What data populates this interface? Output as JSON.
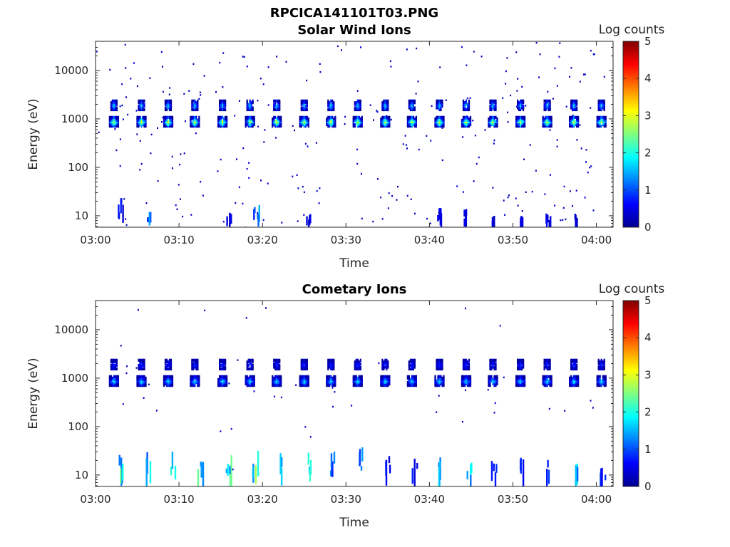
{
  "figure_title": "RPCICA141101T03.PNG",
  "colors": {
    "colormap": [
      "#00008f",
      "#0000ff",
      "#0080ff",
      "#00ffff",
      "#80ff80",
      "#ffff00",
      "#ff8000",
      "#ff0000",
      "#800000"
    ]
  },
  "chart_data": [
    {
      "type": "heatmap",
      "title": "Solar Wind Ions",
      "xlabel": "Time",
      "ylabel": "Energy (eV)",
      "yscale": "log",
      "ylim": [
        5.8,
        40000
      ],
      "xlim": [
        "03:00",
        "04:02"
      ],
      "x_ticks": [
        "03:00",
        "03:10",
        "03:20",
        "03:30",
        "03:40",
        "03:50",
        "04:00"
      ],
      "y_ticks": [
        10,
        100,
        1000,
        10000
      ],
      "y_tick_labels": [
        "10",
        "100",
        "1000",
        "10000"
      ],
      "colorbar": {
        "label": "Log counts",
        "range": [
          0,
          5
        ],
        "ticks": [
          "0",
          "1",
          "2",
          "3",
          "4",
          "5"
        ]
      },
      "grid": false,
      "sweep_times_min": [
        2.2,
        5.5,
        8.7,
        11.9,
        15.2,
        18.5,
        21.7,
        25.0,
        28.2,
        31.4,
        34.7,
        37.9,
        41.2,
        44.4,
        47.6,
        50.9,
        54.1,
        57.3,
        60.6
      ],
      "bands": [
        {
          "energy_center_eV": 870,
          "peak_log_counts": 3.0
        },
        {
          "energy_center_eV": 1900,
          "peak_log_counts": 1.8
        }
      ],
      "low_energy_streaks": [
        {
          "time_min": 3.0,
          "energy_range_eV": [
            6,
            30
          ],
          "log_counts": 0.7
        },
        {
          "time_min": 6.2,
          "energy_range_eV": [
            6,
            12
          ],
          "log_counts": 1.5
        },
        {
          "time_min": 16.0,
          "energy_range_eV": [
            6,
            12
          ],
          "log_counts": 0.6
        },
        {
          "time_min": 19.2,
          "energy_range_eV": [
            6,
            20
          ],
          "log_counts": 1.4
        },
        {
          "time_min": 25.3,
          "energy_range_eV": [
            6,
            12
          ],
          "log_counts": 0.6
        },
        {
          "time_min": 41.2,
          "energy_range_eV": [
            6,
            15
          ],
          "log_counts": 0.5
        },
        {
          "time_min": 44.4,
          "energy_range_eV": [
            6,
            15
          ],
          "log_counts": 0.5
        },
        {
          "time_min": 47.6,
          "energy_range_eV": [
            6,
            10
          ],
          "log_counts": 0.5
        },
        {
          "time_min": 50.9,
          "energy_range_eV": [
            6,
            12
          ],
          "log_counts": 0.6
        },
        {
          "time_min": 54.1,
          "energy_range_eV": [
            6,
            12
          ],
          "log_counts": 0.6
        },
        {
          "time_min": 57.3,
          "energy_range_eV": [
            6,
            14
          ],
          "log_counts": 0.6
        }
      ]
    },
    {
      "type": "heatmap",
      "title": "Cometary Ions",
      "xlabel": "Time",
      "ylabel": "Energy (eV)",
      "yscale": "log",
      "ylim": [
        5.8,
        40000
      ],
      "xlim": [
        "03:00",
        "04:02"
      ],
      "x_ticks": [
        "03:00",
        "03:10",
        "03:20",
        "03:30",
        "03:40",
        "03:50",
        "04:00"
      ],
      "y_ticks": [
        10,
        100,
        1000,
        10000
      ],
      "y_tick_labels": [
        "10",
        "100",
        "1000",
        "10000"
      ],
      "colorbar": {
        "label": "Log counts",
        "range": [
          0,
          5
        ],
        "ticks": [
          "0",
          "1",
          "2",
          "3",
          "4",
          "5"
        ]
      },
      "grid": false,
      "sweep_times_min": [
        2.2,
        5.5,
        8.7,
        11.9,
        15.2,
        18.5,
        21.7,
        25.0,
        28.2,
        31.4,
        34.7,
        37.9,
        41.2,
        44.4,
        47.6,
        50.9,
        54.1,
        57.3,
        60.6
      ],
      "bands": [
        {
          "energy_center_eV": 870,
          "peak_log_counts": 1.8
        },
        {
          "energy_center_eV": 1900,
          "peak_log_counts": 0.9
        }
      ],
      "low_energy_streaks": [
        {
          "time_min": 3.0,
          "energy_range_eV": [
            6,
            35
          ],
          "log_counts": 2.3
        },
        {
          "time_min": 6.2,
          "energy_range_eV": [
            6,
            35
          ],
          "log_counts": 2.0
        },
        {
          "time_min": 9.2,
          "energy_range_eV": [
            6,
            40
          ],
          "log_counts": 2.0
        },
        {
          "time_min": 12.5,
          "energy_range_eV": [
            6,
            35
          ],
          "log_counts": 2.2
        },
        {
          "time_min": 15.9,
          "energy_range_eV": [
            6,
            30
          ],
          "log_counts": 2.4
        },
        {
          "time_min": 19.1,
          "energy_range_eV": [
            6,
            35
          ],
          "log_counts": 2.5
        },
        {
          "time_min": 22.2,
          "energy_range_eV": [
            6,
            30
          ],
          "log_counts": 2.6
        },
        {
          "time_min": 25.4,
          "energy_range_eV": [
            6,
            30
          ],
          "log_counts": 2.5
        },
        {
          "time_min": 28.4,
          "energy_range_eV": [
            6,
            35
          ],
          "log_counts": 1.4
        },
        {
          "time_min": 31.8,
          "energy_range_eV": [
            8,
            40
          ],
          "log_counts": 1.4
        },
        {
          "time_min": 34.9,
          "energy_range_eV": [
            6,
            35
          ],
          "log_counts": 0.8
        },
        {
          "time_min": 38.2,
          "energy_range_eV": [
            6,
            30
          ],
          "log_counts": 0.8
        },
        {
          "time_min": 41.2,
          "energy_range_eV": [
            6,
            30
          ],
          "log_counts": 2.1
        },
        {
          "time_min": 44.7,
          "energy_range_eV": [
            6,
            20
          ],
          "log_counts": 2.0
        },
        {
          "time_min": 47.7,
          "energy_range_eV": [
            6,
            20
          ],
          "log_counts": 1.0
        },
        {
          "time_min": 51.0,
          "energy_range_eV": [
            6,
            30
          ],
          "log_counts": 1.0
        },
        {
          "time_min": 54.1,
          "energy_range_eV": [
            6,
            30
          ],
          "log_counts": 1.0
        },
        {
          "time_min": 57.4,
          "energy_range_eV": [
            6,
            30
          ],
          "log_counts": 2.1
        },
        {
          "time_min": 60.7,
          "energy_range_eV": [
            6,
            20
          ],
          "log_counts": 1.0
        }
      ]
    }
  ]
}
